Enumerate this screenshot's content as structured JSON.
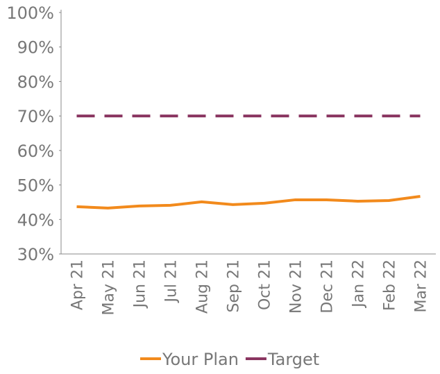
{
  "chart_data": {
    "type": "line",
    "categories": [
      "Apr 21",
      "May 21",
      "Jun 21",
      "Jul 21",
      "Aug 21",
      "Sep 21",
      "Oct 21",
      "Nov 21",
      "Dec 21",
      "Jan 22",
      "Feb 22",
      "Mar 22"
    ],
    "series": [
      {
        "name": "Your Plan",
        "color": "#f28a1c",
        "dash": false,
        "values": [
          43.7,
          43.3,
          43.9,
          44.1,
          45.1,
          44.3,
          44.7,
          45.7,
          45.7,
          45.3,
          45.5,
          46.7
        ]
      },
      {
        "name": "Target",
        "color": "#8a3560",
        "dash": true,
        "values": [
          70,
          70,
          70,
          70,
          70,
          70,
          70,
          70,
          70,
          70,
          70,
          70
        ]
      }
    ],
    "ylim": [
      30,
      100
    ],
    "yticks": [
      {
        "value": 30,
        "label": "30%"
      },
      {
        "value": 40,
        "label": "40%"
      },
      {
        "value": 50,
        "label": "50%"
      },
      {
        "value": 60,
        "label": "60%"
      },
      {
        "value": 70,
        "label": "70%"
      },
      {
        "value": 80,
        "label": "80%"
      },
      {
        "value": 90,
        "label": "90%"
      },
      {
        "value": 100,
        "label": "100%"
      }
    ],
    "grid": false,
    "legend": "bottom"
  }
}
